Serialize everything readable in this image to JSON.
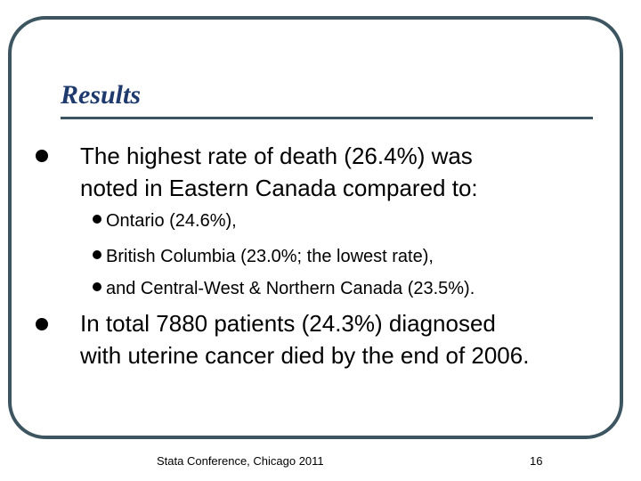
{
  "slide": {
    "title": "Results",
    "points": [
      {
        "line1": "The highest rate of death (26.4%) was",
        "line2": "noted in Eastern Canada compared to:",
        "subpoints": [
          "Ontario (24.6%),",
          "British Columbia (23.0%; the lowest rate),",
          "and Central-West & Northern Canada (23.5%)."
        ]
      },
      {
        "line1": "In total 7880 patients (24.3%) diagnosed",
        "line2": "with uterine cancer died by the end of 2006."
      }
    ],
    "footer": {
      "left": "Stata Conference, Chicago 2011",
      "page_number": "16"
    }
  },
  "colors": {
    "title": "#1f3b6e",
    "frame": "#3c5560",
    "text": "#000000",
    "background": "#ffffff"
  }
}
